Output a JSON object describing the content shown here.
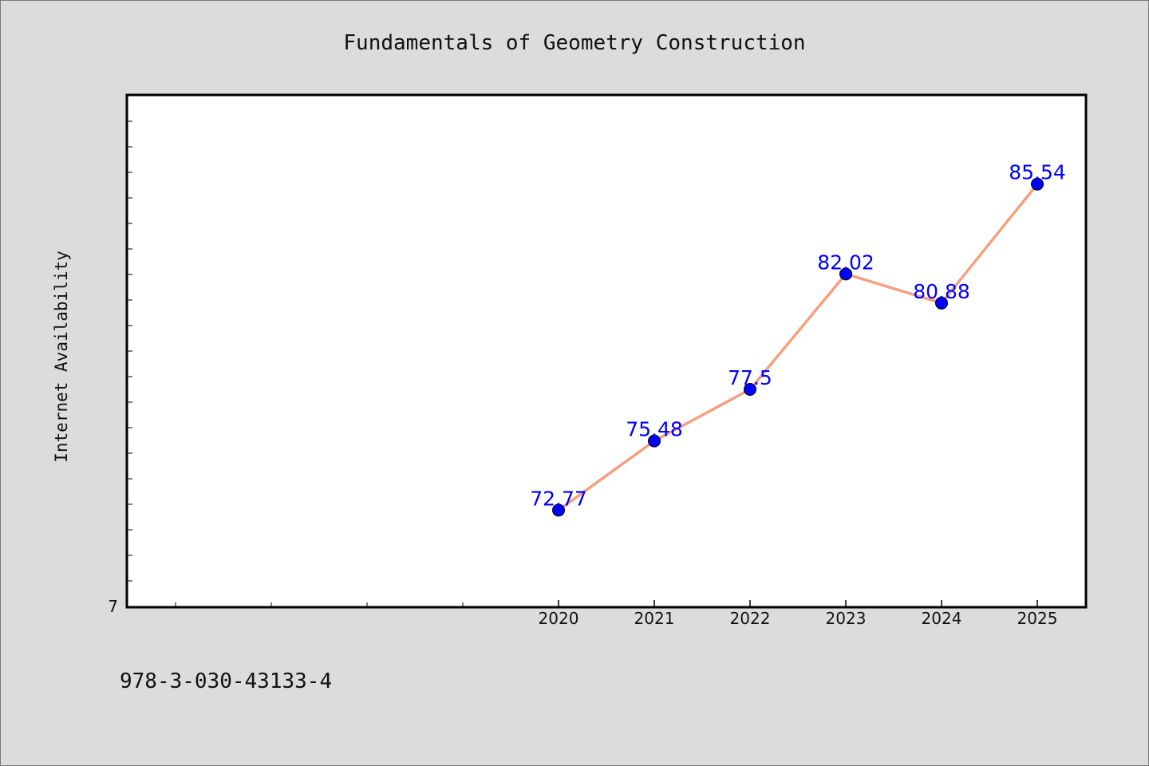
{
  "chart_data": {
    "type": "line",
    "title": "Fundamentals of Geometry Construction",
    "xlabel": "",
    "ylabel": "Internet Availability",
    "categories": [
      "2020",
      "2021",
      "2022",
      "2023",
      "2024",
      "2025"
    ],
    "values": [
      72.77,
      75.48,
      77.5,
      82.02,
      80.88,
      85.54
    ],
    "data_labels": [
      "72.77",
      "75.48",
      "77.5",
      "82.02",
      "80.88",
      "85.54"
    ],
    "y_tick_labels": [
      "7"
    ],
    "ylim": [
      69.0,
      89.0
    ],
    "grid": false,
    "line_color": "#f4a080",
    "marker_color": "#0000ff",
    "label_color": "#0000ff"
  },
  "footer": {
    "isbn": "978-3-030-43133-4"
  }
}
